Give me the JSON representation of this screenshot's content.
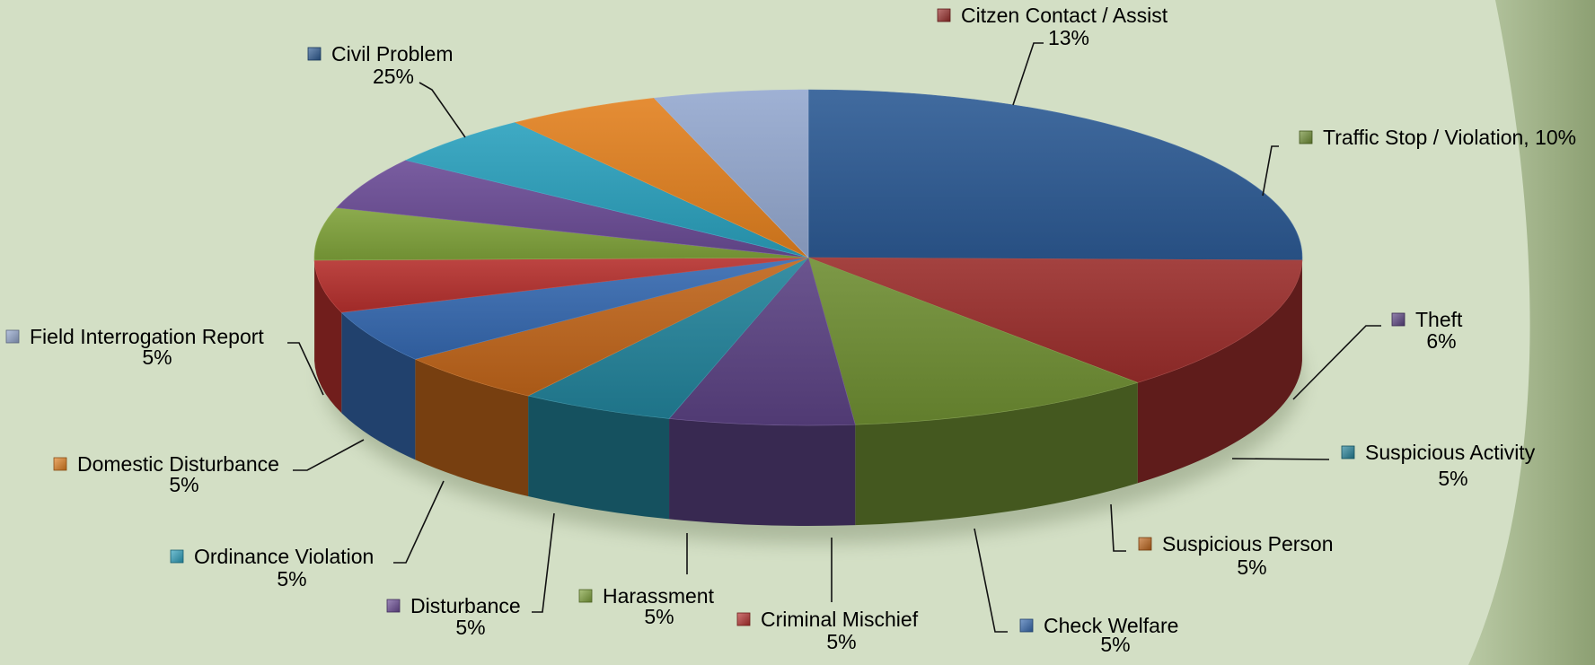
{
  "chart_data": {
    "type": "pie",
    "style": "3d",
    "title": "",
    "slices": [
      {
        "label": "Civil Problem",
        "pct_label": "25%",
        "value": 25,
        "color": "#2c5a94"
      },
      {
        "label": "Citzen Contact / Assist",
        "pct_label": "13%",
        "value": 13,
        "color": "#9a2d2b"
      },
      {
        "label": "Traffic Stop / Violation",
        "pct_label": "10%",
        "value": 10,
        "color": "#6e8e32"
      },
      {
        "label": "Theft",
        "pct_label": "6%",
        "value": 6,
        "color": "#5b4283"
      },
      {
        "label": "Suspicious Activity",
        "pct_label": "5%",
        "value": 5,
        "color": "#22839a"
      },
      {
        "label": "Suspicious Person",
        "pct_label": "5%",
        "value": 5,
        "color": "#c0651a"
      },
      {
        "label": "Check Welfare",
        "pct_label": "5%",
        "value": 5,
        "color": "#3569b0"
      },
      {
        "label": "Criminal Mischief",
        "pct_label": "5%",
        "value": 5,
        "color": "#b6302d"
      },
      {
        "label": "Harassment",
        "pct_label": "5%",
        "value": 5,
        "color": "#7fa23a"
      },
      {
        "label": "Disturbance",
        "pct_label": "5%",
        "value": 5,
        "color": "#6a4b95"
      },
      {
        "label": "Ordinance Violation",
        "pct_label": "5%",
        "value": 5,
        "color": "#2aa0bd"
      },
      {
        "label": "Domestic Disturbance",
        "pct_label": "5%",
        "value": 5,
        "color": "#e2801f"
      },
      {
        "label": "Field Interrogation Report",
        "pct_label": "5%",
        "value": 5,
        "color": "#94a8cf"
      }
    ]
  }
}
